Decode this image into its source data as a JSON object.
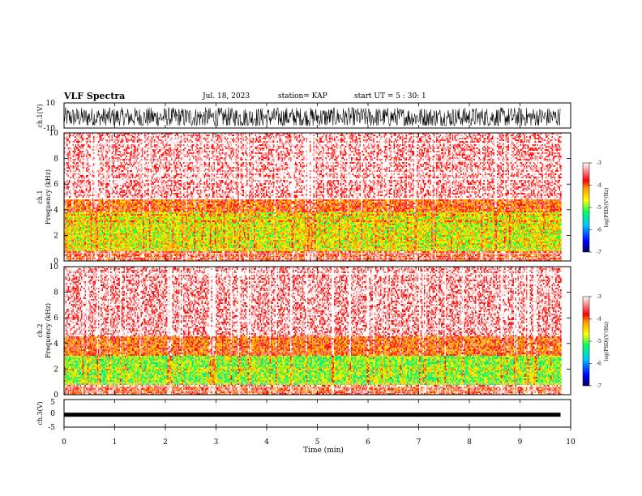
{
  "header": {
    "title": "VLF Spectra",
    "date": "Jul. 18, 2023",
    "station": "station= KAP",
    "start_ut": "start UT =  5 : 30: 1"
  },
  "chart_data": [
    {
      "type": "line",
      "panel": "ch1-waveform",
      "ylabel": "ch.1(V)",
      "ylim": [
        -10,
        10
      ],
      "yticks": [
        "10",
        "-10"
      ],
      "x_range_min": [
        0,
        9.8
      ],
      "description_values": "dense noise, amplitude roughly -5 to 10 V"
    },
    {
      "type": "heatmap",
      "panel": "ch1-spectrogram",
      "ylabel": "ch.1\nFrequency (kHz)",
      "ylim": [
        0,
        10
      ],
      "yticks": [
        "0",
        "2",
        "4",
        "6",
        "8",
        "10"
      ],
      "x_range_min": [
        0,
        9.8
      ],
      "bands_khz": [
        {
          "from": 0.0,
          "to": 0.8,
          "level": -3.6
        },
        {
          "from": 0.8,
          "to": 3.8,
          "level": -4.6
        },
        {
          "from": 3.8,
          "to": 4.8,
          "level": -3.9
        },
        {
          "from": 4.8,
          "to": 10.0,
          "level": -3.2
        }
      ],
      "colorbar": {
        "label": "log(PSD)(V²/Hz)",
        "range": [
          -7,
          -3
        ],
        "ticks": [
          "-3",
          "-4",
          "-5",
          "-6",
          "-7"
        ]
      }
    },
    {
      "type": "heatmap",
      "panel": "ch2-spectrogram",
      "ylabel": "ch.2\nFrequency (kHz)",
      "ylim": [
        0,
        10
      ],
      "yticks": [
        "0",
        "2",
        "4",
        "6",
        "8",
        "10"
      ],
      "x_range_min": [
        0,
        9.8
      ],
      "bands_khz": [
        {
          "from": 0.0,
          "to": 0.8,
          "level": -3.6
        },
        {
          "from": 0.8,
          "to": 3.0,
          "level": -4.9
        },
        {
          "from": 3.0,
          "to": 4.5,
          "level": -3.9
        },
        {
          "from": 4.5,
          "to": 10.0,
          "level": -3.2
        }
      ],
      "colorbar": {
        "label": "log(PSD)(V²/Hz)",
        "range": [
          -7,
          -3
        ],
        "ticks": [
          "-3",
          "-4",
          "-5",
          "-6",
          "-7"
        ]
      }
    },
    {
      "type": "line",
      "panel": "ch3-waveform",
      "ylabel": "ch.3(V)",
      "ylim": [
        -5,
        5
      ],
      "yticks": [
        "5",
        "0",
        "-5"
      ],
      "x_range_min": [
        0,
        9.8
      ],
      "level_v": -0.5
    }
  ],
  "x_axis": {
    "label": "Time (min)",
    "range": [
      0,
      10
    ],
    "ticks": [
      "0",
      "1",
      "2",
      "3",
      "4",
      "5",
      "6",
      "7",
      "8",
      "9",
      "10"
    ]
  },
  "colors": {
    "scale": [
      "#000080",
      "#0000ff",
      "#00c0ff",
      "#00ff60",
      "#ffff00",
      "#ff9900",
      "#ff0000",
      "#ffffff"
    ]
  }
}
